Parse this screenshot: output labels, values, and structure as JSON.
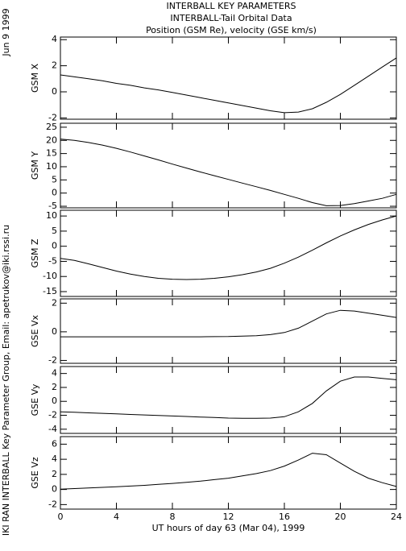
{
  "title": [
    "INTERBALL KEY PARAMETERS",
    "INTERBALL-Tail Orbital Data",
    "Position (GSM Re), velocity (GSE km/s)"
  ],
  "date": "Jun  9 1999",
  "credit": "IKI RAN INTERBALL Key Parameter Group, Email: apetrukov@iki.rssi.ru",
  "chart_data": [
    {
      "type": "line",
      "ylabel": "GSM X",
      "ylim": [
        -2.1,
        4.2
      ],
      "yticks": [
        -2,
        0,
        2,
        4
      ],
      "x": [
        0,
        1,
        2,
        3,
        4,
        5,
        6,
        7,
        8,
        9,
        10,
        11,
        12,
        13,
        14,
        15,
        16,
        17,
        18,
        19,
        20,
        21,
        22,
        23,
        24
      ],
      "values": [
        1.3,
        1.15,
        1.0,
        0.85,
        0.65,
        0.5,
        0.3,
        0.15,
        -0.05,
        -0.25,
        -0.45,
        -0.65,
        -0.85,
        -1.05,
        -1.25,
        -1.45,
        -1.6,
        -1.55,
        -1.3,
        -0.8,
        -0.2,
        0.5,
        1.2,
        1.9,
        2.6
      ]
    },
    {
      "type": "line",
      "ylabel": "GSM Y",
      "ylim": [
        -5.6,
        26.5
      ],
      "yticks": [
        -5,
        0,
        5,
        10,
        15,
        20,
        25
      ],
      "x": [
        0,
        1,
        2,
        3,
        4,
        5,
        6,
        7,
        8,
        9,
        10,
        11,
        12,
        13,
        14,
        15,
        16,
        17,
        18,
        19,
        20,
        21,
        22,
        23,
        24
      ],
      "values": [
        20.5,
        20,
        19.2,
        18.2,
        17,
        15.6,
        14.1,
        12.6,
        11,
        9.5,
        8,
        6.6,
        5.2,
        3.8,
        2.4,
        1,
        -0.5,
        -2,
        -3.6,
        -4.8,
        -4.7,
        -4,
        -3,
        -2,
        -0.5
      ]
    },
    {
      "type": "line",
      "ylabel": "GSM Z",
      "ylim": [
        -16.6,
        11.9
      ],
      "yticks": [
        -15,
        -10,
        -5,
        0,
        5,
        10
      ],
      "x": [
        0,
        1,
        2,
        3,
        4,
        5,
        6,
        7,
        8,
        9,
        10,
        11,
        12,
        13,
        14,
        15,
        16,
        17,
        18,
        19,
        20,
        21,
        22,
        23,
        24
      ],
      "values": [
        -4,
        -4.7,
        -5.8,
        -7,
        -8.2,
        -9.2,
        -10,
        -10.6,
        -10.9,
        -11,
        -10.9,
        -10.6,
        -10.1,
        -9.4,
        -8.5,
        -7.3,
        -5.6,
        -3.6,
        -1.3,
        1.1,
        3.4,
        5.4,
        7.2,
        8.7,
        10
      ]
    },
    {
      "type": "line",
      "ylabel": "GSE Vx",
      "ylim": [
        -2.2,
        2.3
      ],
      "yticks": [
        -2,
        0,
        2
      ],
      "x": [
        0,
        1,
        2,
        3,
        4,
        5,
        6,
        7,
        8,
        9,
        10,
        11,
        12,
        13,
        14,
        15,
        16,
        17,
        18,
        19,
        20,
        21,
        22,
        23,
        24
      ],
      "values": [
        -0.35,
        -0.35,
        -0.35,
        -0.35,
        -0.35,
        -0.35,
        -0.35,
        -0.35,
        -0.35,
        -0.35,
        -0.35,
        -0.34,
        -0.33,
        -0.3,
        -0.27,
        -0.2,
        -0.05,
        0.25,
        0.75,
        1.25,
        1.5,
        1.45,
        1.3,
        1.15,
        1.0
      ]
    },
    {
      "type": "line",
      "ylabel": "GSE Vy",
      "ylim": [
        -4.6,
        5
      ],
      "yticks": [
        -4,
        -2,
        0,
        2,
        4
      ],
      "x": [
        0,
        1,
        2,
        3,
        4,
        5,
        6,
        7,
        8,
        9,
        10,
        11,
        12,
        13,
        14,
        15,
        16,
        17,
        18,
        19,
        20,
        21,
        22,
        23,
        24
      ],
      "values": [
        -1.5,
        -1.57,
        -1.65,
        -1.72,
        -1.8,
        -1.88,
        -1.95,
        -2.02,
        -2.1,
        -2.17,
        -2.25,
        -2.32,
        -2.4,
        -2.42,
        -2.42,
        -2.4,
        -2.2,
        -1.5,
        -0.3,
        1.5,
        2.9,
        3.5,
        3.5,
        3.3,
        3.1
      ]
    },
    {
      "type": "line",
      "ylabel": "GSE Vz",
      "ylim": [
        -2.6,
        7
      ],
      "yticks": [
        -2,
        0,
        2,
        4,
        6
      ],
      "x": [
        0,
        1,
        2,
        3,
        4,
        5,
        6,
        7,
        8,
        9,
        10,
        11,
        12,
        13,
        14,
        15,
        16,
        17,
        18,
        19,
        20,
        21,
        22,
        23,
        24
      ],
      "values": [
        0.05,
        0.12,
        0.2,
        0.28,
        0.35,
        0.45,
        0.55,
        0.67,
        0.8,
        0.95,
        1.1,
        1.3,
        1.5,
        1.8,
        2.1,
        2.5,
        3.1,
        3.9,
        4.8,
        4.6,
        3.5,
        2.4,
        1.5,
        0.9,
        0.4
      ],
      "xlim": [
        0,
        24
      ],
      "xticks": [
        0,
        4,
        8,
        12,
        16,
        20,
        24
      ],
      "xlabel": "UT hours of day  63 (Mar 04), 1999"
    }
  ]
}
